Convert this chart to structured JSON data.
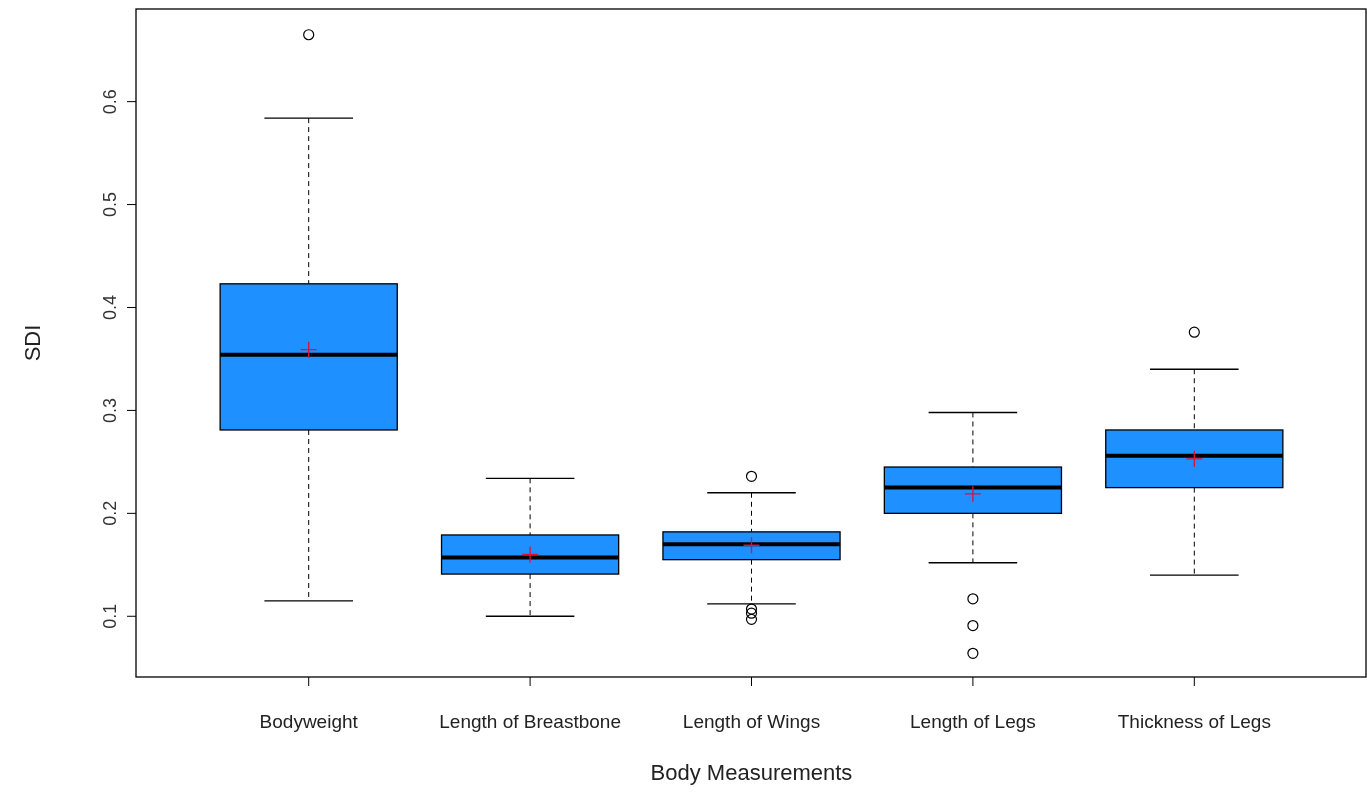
{
  "chart_data": {
    "type": "box",
    "xlabel": "Body Measurements",
    "ylabel": "SDI",
    "categories": [
      "Bodyweight",
      "Length of Breastbone",
      "Length of Wings",
      "Length of Legs",
      "Thickness of Legs"
    ],
    "color": "#1e90ff",
    "ylim": [
      0.041,
      0.69
    ],
    "yticks": [
      0.1,
      0.2,
      0.3,
      0.4,
      0.5,
      0.6
    ],
    "grid": false,
    "boxes": [
      {
        "low": 0.115,
        "q1": 0.281,
        "median": 0.354,
        "q3": 0.423,
        "high": 0.584,
        "mean": 0.359,
        "outliers": [
          0.665
        ]
      },
      {
        "low": 0.1,
        "q1": 0.141,
        "median": 0.157,
        "q3": 0.179,
        "high": 0.234,
        "mean": 0.16
      },
      {
        "low": 0.112,
        "q1": 0.155,
        "median": 0.17,
        "q3": 0.182,
        "high": 0.22,
        "mean": 0.169,
        "outliers": [
          0.236,
          0.107,
          0.103,
          0.097
        ]
      },
      {
        "low": 0.152,
        "q1": 0.2,
        "median": 0.225,
        "q3": 0.245,
        "high": 0.298,
        "mean": 0.219,
        "outliers": [
          0.117,
          0.091,
          0.064
        ]
      },
      {
        "low": 0.14,
        "q1": 0.225,
        "median": 0.256,
        "q3": 0.281,
        "high": 0.34,
        "mean": 0.253,
        "outliers": [
          0.376
        ]
      }
    ]
  }
}
